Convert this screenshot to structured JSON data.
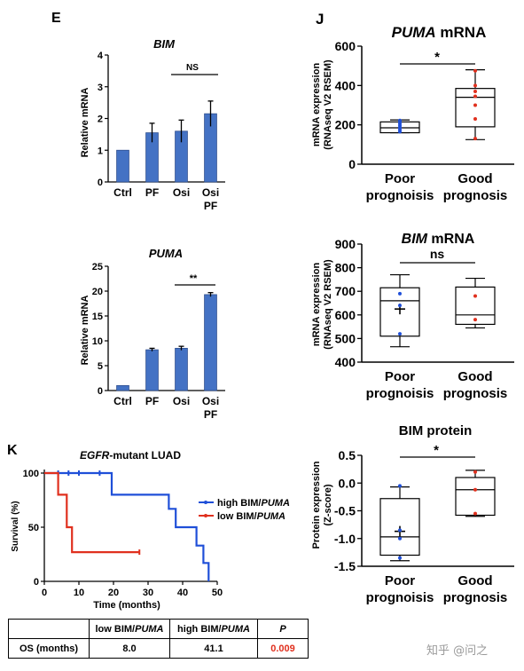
{
  "panel_e": {
    "letter": "E",
    "bim_chart": {
      "title": "BIM",
      "ylabel": "Relative mRNA",
      "ns_label": "NS",
      "categories": [
        {
          "line1": "Ctrl",
          "line2": ""
        },
        {
          "line1": "PF",
          "line2": ""
        },
        {
          "line1": "Osi",
          "line2": ""
        },
        {
          "line1": "Osi",
          "line2": "PF"
        }
      ],
      "yticks": [
        "0",
        "1",
        "2",
        "3",
        "4"
      ]
    },
    "puma_chart": {
      "title": "PUMA",
      "ylabel": "Relative mRNA",
      "sig_label": "**",
      "categories": [
        {
          "line1": "Ctrl",
          "line2": ""
        },
        {
          "line1": "PF",
          "line2": ""
        },
        {
          "line1": "Osi",
          "line2": ""
        },
        {
          "line1": "Osi",
          "line2": "PF"
        }
      ],
      "yticks": [
        "0",
        "5",
        "10",
        "15",
        "20",
        "25"
      ]
    }
  },
  "panel_j": {
    "letter": "J",
    "puma_box": {
      "title_gene": "PUMA",
      "title_rest": " mRNA",
      "ylabel1": "mRNA expression",
      "ylabel2": "(RNAseq V2 RSEM)",
      "sig_label": "*",
      "yticks": [
        "0",
        "200",
        "400",
        "600"
      ],
      "groups": [
        {
          "line1": "Poor",
          "line2": "prognoisis"
        },
        {
          "line1": "Good",
          "line2": "prognosis"
        }
      ]
    },
    "bim_box": {
      "title_gene": "BIM",
      "title_rest": " mRNA",
      "ylabel1": "mRNA expression",
      "ylabel2": "(RNAseq V2 RSEM)",
      "sig_label": "ns",
      "yticks": [
        "400",
        "500",
        "600",
        "700",
        "800",
        "900"
      ],
      "groups": [
        {
          "line1": "Poor",
          "line2": "prognoisis"
        },
        {
          "line1": "Good",
          "line2": "prognosis"
        }
      ]
    },
    "bim_protein_box": {
      "title": "BIM protein",
      "ylabel1": "Protein expression",
      "ylabel2": "(Z-score)",
      "sig_label": "*",
      "yticks": [
        "0.5",
        "0.0",
        "-0.5",
        "-1.0",
        "-1.5"
      ],
      "groups": [
        {
          "line1": "Poor",
          "line2": "prognoisis"
        },
        {
          "line1": "Good",
          "line2": "prognosis"
        }
      ]
    }
  },
  "panel_k": {
    "letter": "K",
    "title_gene": "EGFR",
    "title_rest": "-mutant LUAD",
    "ylabel": "Survival (%)",
    "xlabel": "Time (months)",
    "xticks": [
      "0",
      "10",
      "20",
      "30",
      "40",
      "50"
    ],
    "yticks": [
      "0",
      "50",
      "100"
    ],
    "legend": [
      {
        "prefix": "high BIM/",
        "gene": "PUMA",
        "color": "#1f4fd8"
      },
      {
        "prefix": "low BIM/",
        "gene": "PUMA",
        "color": "#e0301e"
      }
    ],
    "table": {
      "headers": [
        {
          "prefix": "",
          "gene": ""
        },
        {
          "prefix": "low BIM/",
          "gene": "PUMA"
        },
        {
          "prefix": "high BIM/",
          "gene": "PUMA"
        },
        {
          "prefix": "",
          "gene": "P"
        }
      ],
      "row_label": "OS (months)",
      "low": "8.0",
      "high": "41.1",
      "p": "0.009"
    }
  },
  "watermark": "知乎 @问之",
  "chart_data": [
    {
      "type": "bar",
      "title": "BIM",
      "ylabel": "Relative mRNA",
      "categories": [
        "Ctrl",
        "PF",
        "Osi",
        "Osi PF"
      ],
      "values": [
        1.0,
        1.55,
        1.6,
        2.15
      ],
      "errors": [
        0,
        0.3,
        0.35,
        0.4
      ],
      "ylim": [
        0,
        4
      ],
      "color": "#4472c4"
    },
    {
      "type": "bar",
      "title": "PUMA",
      "ylabel": "Relative mRNA",
      "categories": [
        "Ctrl",
        "PF",
        "Osi",
        "Osi PF"
      ],
      "values": [
        1.0,
        8.2,
        8.5,
        19.3
      ],
      "errors": [
        0,
        0.3,
        0.4,
        0.4
      ],
      "ylim": [
        0,
        25
      ],
      "color": "#4472c4"
    },
    {
      "type": "box",
      "title": "PUMA mRNA",
      "ylabel": "mRNA expression (RNAseq V2 RSEM)",
      "groups": [
        "Poor prognoisis",
        "Good prognosis"
      ],
      "ylim": [
        0,
        600
      ],
      "boxes": [
        {
          "min": 160,
          "q1": 160,
          "median": 185,
          "q3": 215,
          "max": 225,
          "points": [
            165,
            175,
            185,
            195,
            205,
            215,
            222
          ]
        },
        {
          "min": 125,
          "q1": 190,
          "median": 340,
          "q3": 385,
          "max": 480,
          "points": [
            130,
            230,
            300,
            345,
            370,
            400,
            475
          ]
        }
      ],
      "point_colors": [
        "#1f4fd8",
        "#e0301e"
      ]
    },
    {
      "type": "box",
      "title": "BIM mRNA",
      "ylabel": "mRNA expression (RNAseq V2 RSEM)",
      "groups": [
        "Poor prognoisis",
        "Good prognosis"
      ],
      "ylim": [
        400,
        900
      ],
      "boxes": [
        {
          "min": 465,
          "q1": 510,
          "median": 660,
          "q3": 715,
          "max": 770,
          "mean": 625,
          "points": [
            520,
            640,
            690
          ]
        },
        {
          "min": 545,
          "q1": 560,
          "median": 600,
          "q3": 718,
          "max": 755,
          "points": [
            580,
            680
          ]
        }
      ],
      "point_colors": [
        "#1f4fd8",
        "#e0301e"
      ]
    },
    {
      "type": "box",
      "title": "BIM protein",
      "ylabel": "Protein expression (Z-score)",
      "groups": [
        "Poor prognoisis",
        "Good prognosis"
      ],
      "ylim": [
        -1.5,
        0.5
      ],
      "boxes": [
        {
          "min": -1.4,
          "q1": -1.3,
          "median": -0.97,
          "q3": -0.28,
          "max": -0.07,
          "mean": -0.87,
          "points": [
            -0.05,
            -0.85,
            -1.0,
            -1.35
          ]
        },
        {
          "min": -0.6,
          "q1": -0.58,
          "median": -0.12,
          "q3": 0.1,
          "max": 0.23,
          "points": [
            0.2,
            -0.12,
            -0.55
          ]
        }
      ],
      "point_colors": [
        "#1f4fd8",
        "#e0301e"
      ]
    },
    {
      "type": "line",
      "title": "EGFR-mutant LUAD",
      "xlabel": "Time (months)",
      "ylabel": "Survival (%)",
      "xlim": [
        0,
        50
      ],
      "ylim": [
        0,
        100
      ],
      "series": [
        {
          "name": "high BIM/PUMA",
          "color": "#1f4fd8",
          "steps": [
            [
              0,
              100
            ],
            [
              19.5,
              100
            ],
            [
              19.5,
              80
            ],
            [
              36,
              80
            ],
            [
              36,
              67
            ],
            [
              38,
              67
            ],
            [
              38,
              50
            ],
            [
              44,
              50
            ],
            [
              44,
              33
            ],
            [
              46,
              33
            ],
            [
              46,
              17
            ],
            [
              47.5,
              17
            ],
            [
              47.5,
              0
            ]
          ],
          "censor": [
            [
              4,
              100
            ],
            [
              7,
              100
            ],
            [
              10,
              100
            ],
            [
              16,
              100
            ]
          ]
        },
        {
          "name": "low BIM/PUMA",
          "color": "#e0301e",
          "steps": [
            [
              0,
              100
            ],
            [
              4,
              100
            ],
            [
              4,
              80
            ],
            [
              6.5,
              80
            ],
            [
              6.5,
              50
            ],
            [
              8,
              50
            ],
            [
              8,
              27
            ],
            [
              27.5,
              27
            ]
          ],
          "censor": [
            [
              27.5,
              27
            ]
          ]
        }
      ]
    }
  ]
}
